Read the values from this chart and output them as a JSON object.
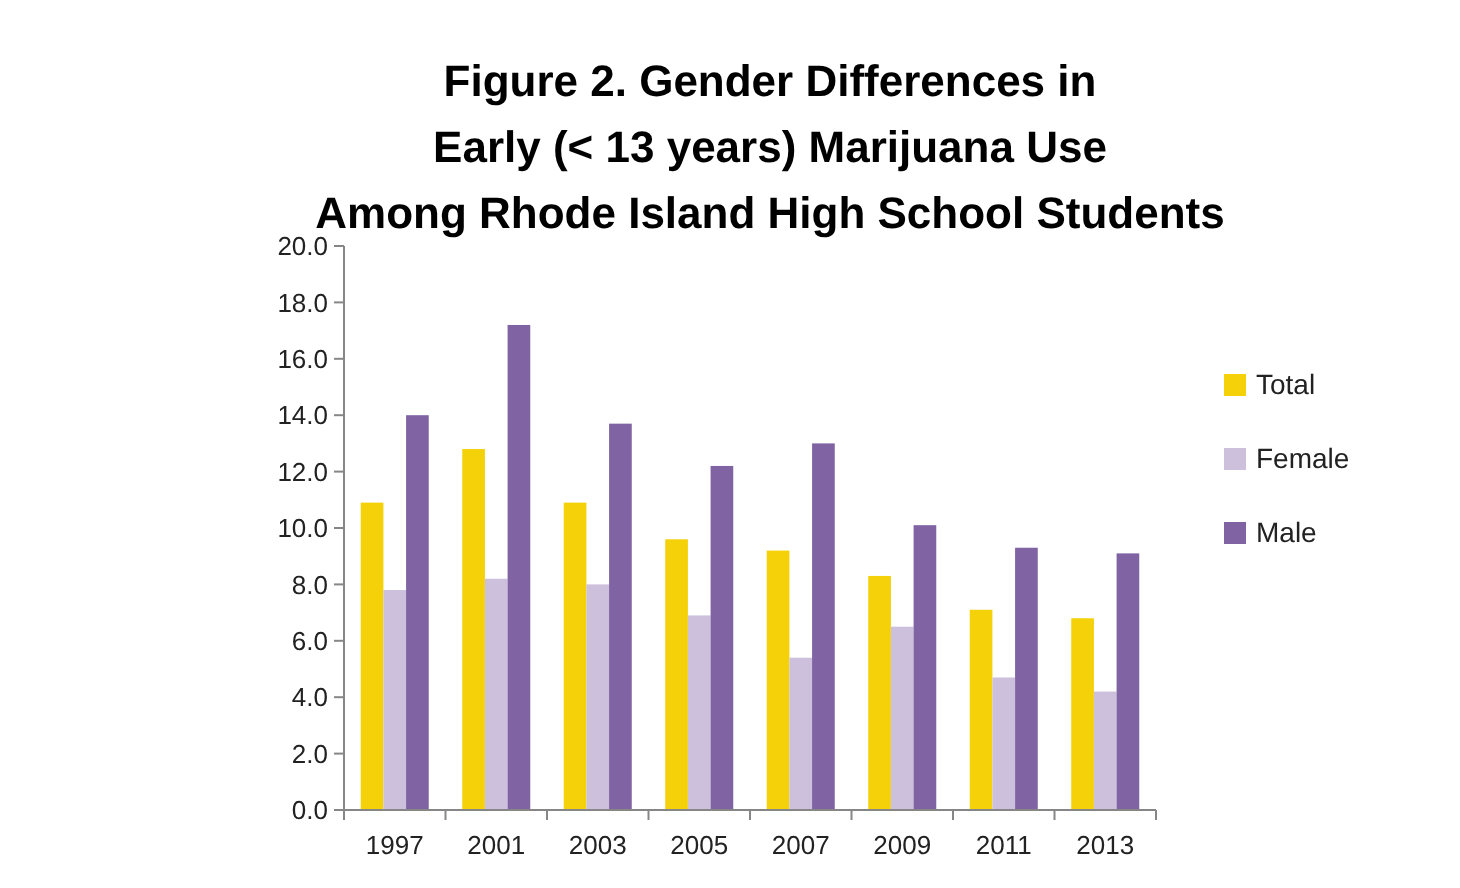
{
  "chart_data": {
    "type": "bar",
    "title": "Figure 2. Gender Differences in\nEarly (< 13 years) Marijuana Use\nAmong Rhode Island High School Students",
    "categories": [
      "1997",
      "2001",
      "2003",
      "2005",
      "2007",
      "2009",
      "2011",
      "2013"
    ],
    "series": [
      {
        "name": "Total",
        "color": "#f5d10a",
        "values": [
          10.9,
          12.8,
          10.9,
          9.6,
          9.2,
          8.3,
          7.1,
          6.8
        ]
      },
      {
        "name": "Female",
        "color": "#ccc0dc",
        "values": [
          7.8,
          8.2,
          8.0,
          6.9,
          5.4,
          6.5,
          4.7,
          4.2
        ]
      },
      {
        "name": "Male",
        "color": "#7f63a3",
        "values": [
          14.0,
          17.2,
          13.7,
          12.2,
          13.0,
          10.1,
          9.3,
          9.1
        ]
      }
    ],
    "ylim": [
      0,
      20
    ],
    "yticks": [
      {
        "value": 0,
        "label": "0.0"
      },
      {
        "value": 2,
        "label": "2.0"
      },
      {
        "value": 4,
        "label": "4.0"
      },
      {
        "value": 6,
        "label": "6.0"
      },
      {
        "value": 8,
        "label": "8.0"
      },
      {
        "value": 10,
        "label": "10.0"
      },
      {
        "value": 12,
        "label": "12.0"
      },
      {
        "value": 14,
        "label": "14.0"
      },
      {
        "value": 16,
        "label": "16.0"
      },
      {
        "value": 18,
        "label": "18.0"
      },
      {
        "value": 20,
        "label": "20.0"
      }
    ],
    "grid": false,
    "legend": "right"
  }
}
